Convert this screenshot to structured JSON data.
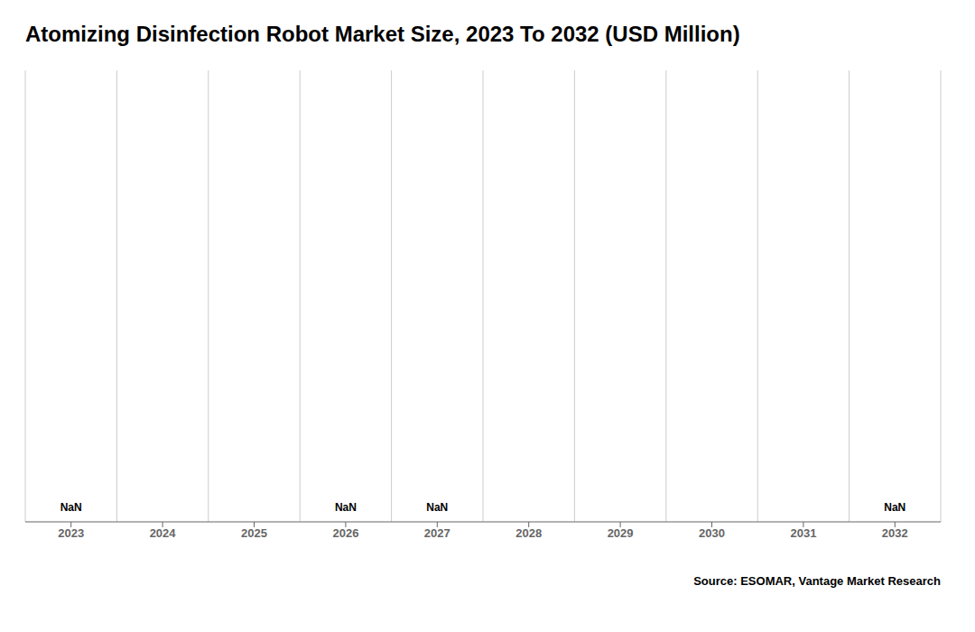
{
  "chart_data": {
    "type": "bar",
    "title": "Atomizing Disinfection Robot Market Size, 2023 To 2032 (USD Million)",
    "categories": [
      "2023",
      "2024",
      "2025",
      "2026",
      "2027",
      "2028",
      "2029",
      "2030",
      "2031",
      "2032"
    ],
    "values": [
      null,
      null,
      null,
      null,
      null,
      null,
      null,
      null,
      null,
      null
    ],
    "ylim": [
      0,
      1
    ],
    "tick_labels": "x",
    "grid": true,
    "annotations": [
      {
        "text": "NaN",
        "x": "2023"
      },
      {
        "text": "NaN",
        "x": "2026"
      },
      {
        "text": "NaN",
        "x": "2027"
      },
      {
        "text": "NaN",
        "x": "2032"
      },
      {
        "text": "Source: ESOMAR, Vantage Market Research"
      }
    ]
  }
}
